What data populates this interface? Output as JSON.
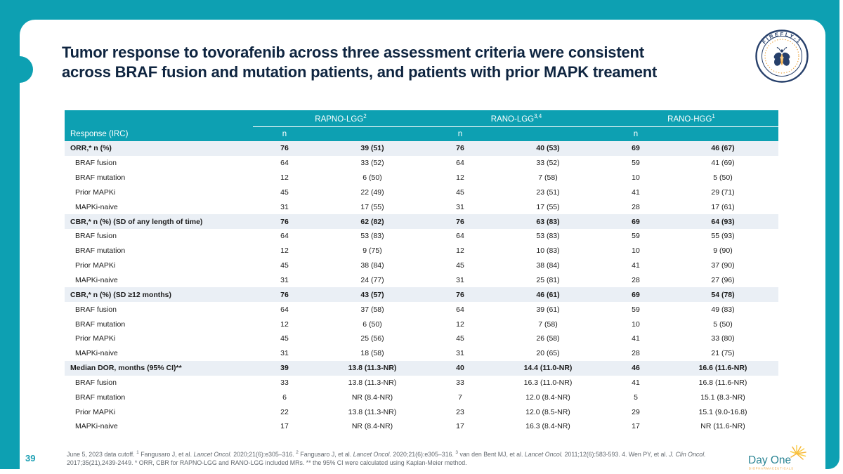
{
  "slide": {
    "page_number": "39",
    "title_line1": "Tumor response to tovorafenib across three assessment criteria were consistent",
    "title_line2": "across BRAF fusion and mutation patients, and patients with prior MAPK treament"
  },
  "logos": {
    "firefly_badge_text": "FIREFLY-1",
    "dayone_name": "Day One",
    "dayone_sub": "BIOPHARMACEUTICALS"
  },
  "colors": {
    "teal": "#0da0b2",
    "navy_title": "#0f2540",
    "badge_navy": "#27406b",
    "badge_orange": "#eca43d",
    "section_row_bg": "#eaeff5",
    "footnote_gray": "#63696f",
    "dayone_teal": "#2a8494",
    "dayone_orange": "#f2a333"
  },
  "table": {
    "response_header": "Response (IRC)",
    "n_label": "n",
    "groups": [
      {
        "label": "RAPNO-LGG",
        "sup": "2"
      },
      {
        "label": "RANO-LGG",
        "sup": "3,4"
      },
      {
        "label": "RANO-HGG",
        "sup": "1"
      }
    ],
    "rows": [
      {
        "label": "ORR,* n (%)",
        "bold": true,
        "cells": [
          "76",
          "39 (51)",
          "76",
          "40 (53)",
          "69",
          "46 (67)"
        ]
      },
      {
        "label": "BRAF fusion",
        "bold": false,
        "cells": [
          "64",
          "33 (52)",
          "64",
          "33 (52)",
          "59",
          "41 (69)"
        ]
      },
      {
        "label": "BRAF mutation",
        "bold": false,
        "cells": [
          "12",
          "6 (50)",
          "12",
          "7 (58)",
          "10",
          "5 (50)"
        ]
      },
      {
        "label": "Prior MAPKi",
        "bold": false,
        "cells": [
          "45",
          "22 (49)",
          "45",
          "23 (51)",
          "41",
          "29 (71)"
        ]
      },
      {
        "label": "MAPKi-naive",
        "bold": false,
        "cells": [
          "31",
          "17 (55)",
          "31",
          "17 (55)",
          "28",
          "17 (61)"
        ]
      },
      {
        "label": "CBR,* n (%) (SD of any length of time)",
        "bold": true,
        "cells": [
          "76",
          "62 (82)",
          "76",
          "63 (83)",
          "69",
          "64 (93)"
        ]
      },
      {
        "label": "BRAF fusion",
        "bold": false,
        "cells": [
          "64",
          "53 (83)",
          "64",
          "53 (83)",
          "59",
          "55 (93)"
        ]
      },
      {
        "label": "BRAF mutation",
        "bold": false,
        "cells": [
          "12",
          "9 (75)",
          "12",
          "10 (83)",
          "10",
          "9 (90)"
        ]
      },
      {
        "label": "Prior MAPKi",
        "bold": false,
        "cells": [
          "45",
          "38 (84)",
          "45",
          "38 (84)",
          "41",
          "37 (90)"
        ]
      },
      {
        "label": "MAPKi-naive",
        "bold": false,
        "cells": [
          "31",
          "24 (77)",
          "31",
          "25 (81)",
          "28",
          "27 (96)"
        ]
      },
      {
        "label": "CBR,* n (%) (SD ≥12 months)",
        "bold": true,
        "cells": [
          "76",
          "43 (57)",
          "76",
          "46 (61)",
          "69",
          "54 (78)"
        ]
      },
      {
        "label": "BRAF fusion",
        "bold": false,
        "cells": [
          "64",
          "37 (58)",
          "64",
          "39 (61)",
          "59",
          "49 (83)"
        ]
      },
      {
        "label": "BRAF mutation",
        "bold": false,
        "cells": [
          "12",
          "6 (50)",
          "12",
          "7 (58)",
          "10",
          "5 (50)"
        ]
      },
      {
        "label": "Prior MAPKi",
        "bold": false,
        "cells": [
          "45",
          "25 (56)",
          "45",
          "26 (58)",
          "41",
          "33 (80)"
        ]
      },
      {
        "label": "MAPKi-naive",
        "bold": false,
        "cells": [
          "31",
          "18 (58)",
          "31",
          "20 (65)",
          "28",
          "21 (75)"
        ]
      },
      {
        "label": "Median DOR, months (95% CI)**",
        "bold": true,
        "cells": [
          "39",
          "13.8 (11.3-NR)",
          "40",
          "14.4 (11.0-NR)",
          "46",
          "16.6 (11.6-NR)"
        ]
      },
      {
        "label": "BRAF fusion",
        "bold": false,
        "cells": [
          "33",
          "13.8 (11.3-NR)",
          "33",
          "16.3 (11.0-NR)",
          "41",
          "16.8 (11.6-NR)"
        ]
      },
      {
        "label": "BRAF mutation",
        "bold": false,
        "cells": [
          "6",
          "NR (8.4-NR)",
          "7",
          "12.0 (8.4-NR)",
          "5",
          "15.1 (8.3-NR)"
        ]
      },
      {
        "label": "Prior MAPKi",
        "bold": false,
        "cells": [
          "22",
          "13.8 (11.3-NR)",
          "23",
          "12.0 (8.5-NR)",
          "29",
          "15.1 (9.0-16.8)"
        ]
      },
      {
        "label": "MAPKi-naive",
        "bold": false,
        "cells": [
          "17",
          "NR (8.4-NR)",
          "17",
          "16.3 (8.4-NR)",
          "17",
          "NR (11.6-NR)"
        ]
      }
    ]
  },
  "footnote": {
    "segments": [
      {
        "text": "June 5, 2023 data cutoff. "
      },
      {
        "text": "1",
        "sup": true
      },
      {
        "text": " Fangusaro J, et al. "
      },
      {
        "text": "Lancet Oncol.",
        "italic": true
      },
      {
        "text": " 2020;21(6):e305–316. "
      },
      {
        "text": "2",
        "sup": true
      },
      {
        "text": " Fangusaro J, et al. "
      },
      {
        "text": "Lancet Oncol.",
        "italic": true
      },
      {
        "text": " 2020;21(6):e305–316. "
      },
      {
        "text": "3",
        "sup": true
      },
      {
        "text": " van den Bent MJ, et al. "
      },
      {
        "text": "Lancet Oncol.",
        "italic": true
      },
      {
        "text": " 2011;12(6):583-593. 4. Wen PY, et al. "
      },
      {
        "text": "J. Clin Oncol.",
        "italic": true
      },
      {
        "text": " 2017;35(21),2439-2449. * ORR, CBR for RAPNO-LGG and RANO-LGG included MRs. ** the 95% CI were calculated using Kaplan-Meier method."
      }
    ]
  }
}
